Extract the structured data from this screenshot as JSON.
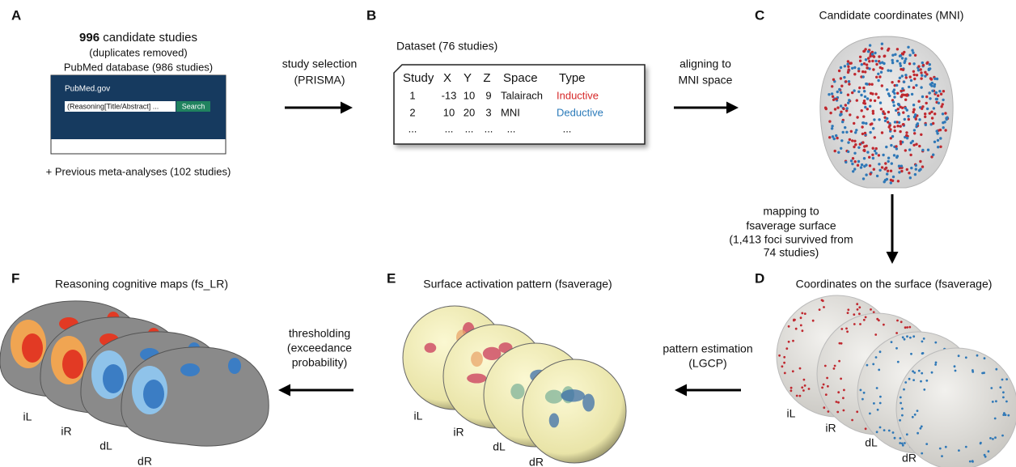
{
  "panel_a": {
    "letter": "A",
    "count": "996",
    "title": "candidate studies",
    "note": "(duplicates removed)",
    "source": "PubMed database (986 studies)",
    "site": "PubMed.gov",
    "query": "(Reasoning[Title/Abstract] ...",
    "button": "Search",
    "extra": "+ Previous meta-analyses (102 studies)"
  },
  "arrows": [
    {
      "lines": [
        "study selection",
        "(PRISMA)"
      ]
    },
    {
      "lines": [
        "aligning to",
        "MNI space"
      ]
    },
    {
      "lines": [
        "mapping to",
        "fsaverage surface",
        "(1,413 foci survived from",
        "74 studies)"
      ]
    },
    {
      "lines": [
        "pattern estimation",
        "(LGCP)"
      ]
    },
    {
      "lines": [
        "thresholding",
        "(exceedance",
        "probability)"
      ]
    }
  ],
  "panel_b": {
    "letter": "B",
    "title": "Dataset (76 studies)",
    "table": {
      "header": [
        "Study",
        "X",
        "Y",
        "Z",
        "Space",
        "Type"
      ],
      "rows": [
        [
          1,
          -13,
          10,
          9,
          "Talairach",
          "Inductive"
        ],
        [
          2,
          10,
          20,
          3,
          "MNI",
          "Deductive"
        ],
        [
          "...",
          "...",
          "...",
          "...",
          "...",
          "..."
        ]
      ]
    }
  },
  "panel_c": {
    "letter": "C",
    "title": "Candidate coordinates (MNI)"
  },
  "panel_d": {
    "letter": "D",
    "title": "Coordinates on the surface (fsaverage)",
    "labels": [
      "iL",
      "iR",
      "dL",
      "dR"
    ]
  },
  "panel_e": {
    "letter": "E",
    "title": "Surface activation pattern (fsaverage)",
    "labels": [
      "iL",
      "iR",
      "dL",
      "dR"
    ]
  },
  "panel_f": {
    "letter": "F",
    "title": "Reasoning cognitive maps (fs_LR)",
    "labels": [
      "iL",
      "iR",
      "dL",
      "dR"
    ]
  }
}
